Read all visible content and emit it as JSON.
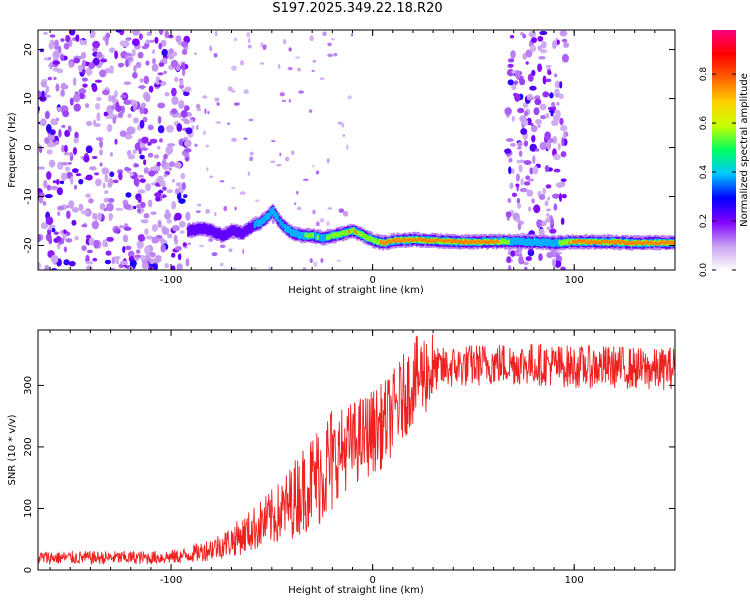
{
  "title": "S197.2025.349.22.18.R20",
  "chart_data": [
    {
      "type": "heatmap",
      "name": "spectrogram",
      "xlabel": "Height of straight line (km)",
      "ylabel": "Frequency (Hz)",
      "xlim": [
        -166,
        150
      ],
      "ylim": [
        -25,
        24
      ],
      "xticks": [
        -100,
        0,
        100
      ],
      "yticks": [
        -20,
        -10,
        0,
        10,
        20
      ],
      "colorbar": {
        "label": "Normalized spectral amplitude",
        "range": [
          0,
          0.98
        ],
        "ticks": [
          "0.0",
          "0.2",
          "0.4",
          "0.6",
          "0.8"
        ],
        "colors": [
          "#ffffff",
          "#c8a0f0",
          "#8000ff",
          "#0000ff",
          "#00c8ff",
          "#00ff60",
          "#c8ff00",
          "#ffd000",
          "#ff6000",
          "#ff0000",
          "#ff0080"
        ]
      },
      "noise_regions_x": [
        [
          -166,
          -90
        ],
        [
          67,
          96
        ]
      ],
      "signal_track": {
        "x": [
          -92,
          -85,
          -80,
          -75,
          -70,
          -65,
          -60,
          -55,
          -50,
          -45,
          -40,
          -35,
          -30,
          -25,
          -20,
          -15,
          -10,
          -5,
          0,
          5,
          10,
          20,
          30,
          40,
          50,
          60,
          70,
          80,
          90,
          100,
          110,
          120,
          130,
          140,
          150
        ],
        "freq": [
          -17,
          -16.5,
          -17,
          -18,
          -17,
          -17.5,
          -16,
          -15,
          -13,
          -16,
          -17.5,
          -18,
          -18,
          -18.5,
          -18,
          -17.5,
          -17,
          -18,
          -19,
          -19.5,
          -19,
          -18.8,
          -19,
          -19.2,
          -19.3,
          -19.2,
          -19.2,
          -19.3,
          -19.5,
          -19.2,
          -19.3,
          -19.3,
          -19.5,
          -19.4,
          -19.5
        ],
        "amplitude": [
          0.3,
          0.3,
          0.3,
          0.25,
          0.35,
          0.3,
          0.4,
          0.45,
          0.45,
          0.4,
          0.5,
          0.55,
          0.6,
          0.55,
          0.65,
          0.7,
          0.8,
          0.75,
          0.75,
          0.85,
          0.9,
          0.9,
          0.85,
          0.9,
          0.9,
          0.85,
          0.5,
          0.5,
          0.5,
          0.9,
          0.92,
          0.92,
          0.92,
          0.92,
          0.9
        ]
      }
    },
    {
      "type": "line",
      "name": "snr",
      "xlabel": "Height of straight line (km)",
      "ylabel": "SNR (10 * v/v)",
      "xlim": [
        -166,
        150
      ],
      "ylim": [
        0,
        390
      ],
      "xticks": [
        -100,
        0,
        100
      ],
      "yticks": [
        0,
        100,
        200,
        300
      ],
      "color": "#ee2020",
      "x": [
        -166,
        -150,
        -130,
        -110,
        -95,
        -85,
        -75,
        -65,
        -55,
        -45,
        -35,
        -25,
        -15,
        -5,
        0,
        5,
        10,
        15,
        20,
        25,
        30,
        40,
        60,
        80,
        100,
        120,
        140,
        150
      ],
      "y": [
        20,
        20,
        20,
        20,
        22,
        30,
        40,
        55,
        75,
        95,
        130,
        160,
        195,
        215,
        225,
        235,
        255,
        280,
        305,
        320,
        325,
        330,
        335,
        335,
        330,
        330,
        325,
        330
      ]
    }
  ]
}
